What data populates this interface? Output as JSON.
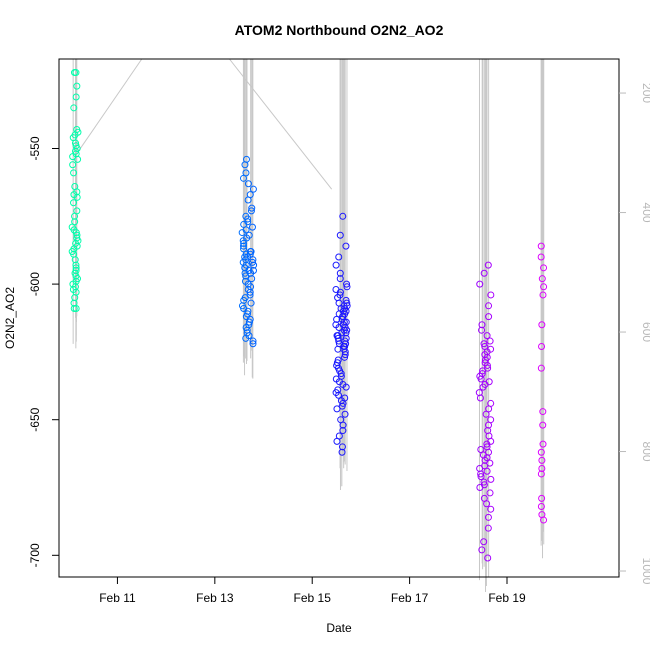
{
  "chart_data": {
    "type": "scatter",
    "title": "ATOM2 Northbound O2N2_AO2",
    "xlabel": "Date",
    "ylabel": "O2N2_AO2",
    "x_unit": "days",
    "xlim": [
      9.8,
      21.3
    ],
    "ylim": [
      -708,
      -517
    ],
    "y_ticks": [
      -700,
      -650,
      -600,
      -550
    ],
    "x_ticks": [
      {
        "value": 11,
        "label": "Feb 11"
      },
      {
        "value": 13,
        "label": "Feb 13"
      },
      {
        "value": 15,
        "label": "Feb 15"
      },
      {
        "value": 17,
        "label": "Feb 17"
      },
      {
        "value": 19,
        "label": "Feb 19"
      }
    ],
    "right_axis": {
      "label_color": "#bbbbbb",
      "ticks": [
        200,
        400,
        600,
        800,
        1000
      ],
      "range": [
        143,
        1010
      ],
      "inverted": true
    },
    "depth_profile_color": "#c8c8c8",
    "point_color_scale": [
      "#00ffaa",
      "#00aaff",
      "#0022ff",
      "#6600ff",
      "#dd00ff"
    ],
    "clusters": [
      {
        "x_center": 10.13,
        "x_spread": 0.06,
        "y_values": [
          -522,
          -522,
          -527,
          -531,
          -535,
          -543,
          -544,
          -545,
          -546,
          -548,
          -549,
          -550,
          -551,
          -552,
          -553,
          -554,
          -556,
          -559,
          -564,
          -566,
          -567,
          -568,
          -570,
          -573,
          -575,
          -577,
          -579,
          -580,
          -581,
          -582,
          -583,
          -584,
          -585,
          -586,
          -587,
          -588,
          -589,
          -591,
          -593,
          -594,
          -595,
          -596,
          -597,
          -598,
          -599,
          -600,
          -601,
          -602,
          -603,
          -605,
          -607,
          -609,
          -609
        ]
      },
      {
        "x_center": 13.68,
        "x_spread": 0.12,
        "y_values": [
          -554,
          -556,
          -559,
          -561,
          -563,
          -565,
          -567,
          -569,
          -572,
          -573,
          -575,
          -576,
          -577,
          -578,
          -579,
          -580,
          -581,
          -582,
          -583,
          -584,
          -585,
          -586,
          -587,
          -588,
          -588,
          -589,
          -589,
          -590,
          -590,
          -591,
          -591,
          -592,
          -592,
          -593,
          -593,
          -594,
          -594,
          -595,
          -595,
          -596,
          -596,
          -597,
          -598,
          -599,
          -600,
          -601,
          -602,
          -603,
          -604,
          -605,
          -606,
          -607,
          -608,
          -609,
          -610,
          -611,
          -612,
          -613,
          -614,
          -615,
          -616,
          -617,
          -618,
          -619,
          -620,
          -621,
          -622
        ]
      },
      {
        "x_center": 15.6,
        "x_spread": 0.12,
        "y_values": [
          -575,
          -582,
          -586,
          -590,
          -593,
          -596,
          -598,
          -600,
          -601,
          -602,
          -603,
          -604,
          -605,
          -606,
          -607,
          -607,
          -608,
          -608,
          -609,
          -609,
          -610,
          -610,
          -611,
          -611,
          -612,
          -612,
          -613,
          -613,
          -614,
          -614,
          -615,
          -615,
          -616,
          -616,
          -617,
          -617,
          -618,
          -618,
          -619,
          -619,
          -620,
          -620,
          -621,
          -621,
          -622,
          -622,
          -623,
          -623,
          -624,
          -624,
          -625,
          -626,
          -627,
          -628,
          -629,
          -630,
          -631,
          -632,
          -633,
          -634,
          -635,
          -636,
          -637,
          -638,
          -639,
          -640,
          -641,
          -642,
          -643,
          -644,
          -645,
          -646,
          -648,
          -650,
          -652,
          -654,
          -656,
          -658,
          -660,
          -662
        ]
      },
      {
        "x_center": 18.55,
        "x_spread": 0.12,
        "y_values": [
          -593,
          -596,
          -600,
          -604,
          -608,
          -612,
          -615,
          -617,
          -619,
          -621,
          -622,
          -623,
          -624,
          -625,
          -626,
          -627,
          -628,
          -629,
          -630,
          -631,
          -632,
          -633,
          -634,
          -635,
          -636,
          -637,
          -638,
          -640,
          -642,
          -644,
          -646,
          -648,
          -650,
          -652,
          -654,
          -656,
          -658,
          -659,
          -660,
          -661,
          -662,
          -663,
          -664,
          -665,
          -666,
          -667,
          -668,
          -669,
          -670,
          -671,
          -672,
          -673,
          -674,
          -675,
          -677,
          -679,
          -681,
          -683,
          -686,
          -690,
          -695,
          -698,
          -701
        ]
      },
      {
        "x_center": 19.73,
        "x_spread": 0.03,
        "y_values": [
          -586,
          -590,
          -594,
          -598,
          -601,
          -604,
          -615,
          -623,
          -631,
          -647,
          -652,
          -659,
          -662,
          -665,
          -668,
          -670,
          -679,
          -682,
          -685,
          -687
        ]
      }
    ]
  }
}
